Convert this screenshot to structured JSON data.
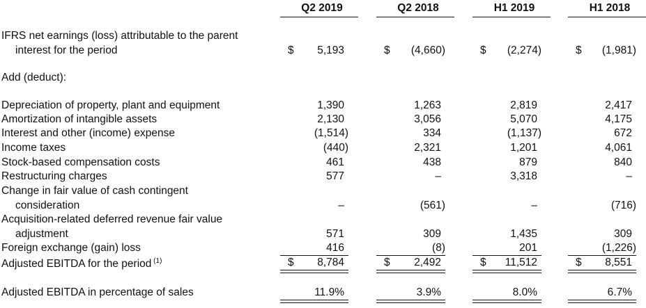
{
  "table": {
    "columns": [
      "Q2 2019",
      "Q2 2018",
      "H1 2019",
      "H1 2018"
    ],
    "rows": [
      {
        "label": [
          "IFRS net earnings (loss) attributable to the parent",
          "interest for the period"
        ],
        "currency": "$",
        "values": [
          "5,193",
          "(4,660)",
          "(2,274)",
          "(1,981)"
        ]
      },
      {
        "label": [
          "Add (deduct):"
        ]
      },
      {
        "label": [
          "Depreciation of property, plant and equipment"
        ],
        "values": [
          "1,390",
          "1,263",
          "2,819",
          "2,417"
        ]
      },
      {
        "label": [
          "Amortization of intangible assets"
        ],
        "values": [
          "2,130",
          "3,056",
          "5,070",
          "4,175"
        ]
      },
      {
        "label": [
          "Interest and other (income) expense"
        ],
        "values": [
          "(1,514)",
          "334",
          "(1,137)",
          "672"
        ]
      },
      {
        "label": [
          "Income taxes"
        ],
        "values": [
          "(440)",
          "2,321",
          "1,201",
          "4,061"
        ]
      },
      {
        "label": [
          "Stock-based compensation costs"
        ],
        "values": [
          "461",
          "438",
          "879",
          "840"
        ]
      },
      {
        "label": [
          "Restructuring charges"
        ],
        "values": [
          "577",
          "–",
          "3,318",
          "–"
        ]
      },
      {
        "label": [
          "Change in fair value of cash contingent",
          "consideration"
        ],
        "values": [
          "–",
          "(561)",
          "–",
          "(716)"
        ]
      },
      {
        "label": [
          "Acquisition-related deferred revenue fair value",
          "adjustment"
        ],
        "values": [
          "571",
          "309",
          "1,435",
          "309"
        ]
      },
      {
        "label": [
          "Foreign exchange (gain) loss"
        ],
        "values": [
          "416",
          "(8)",
          "201",
          "(1,226)"
        ],
        "rule": "single"
      },
      {
        "label": [
          "Adjusted EBITDA for the period"
        ],
        "footnote": "(1)",
        "currency": "$",
        "values": [
          "8,784",
          "2,492",
          "11,512",
          "8,551"
        ],
        "rule": "double"
      },
      {
        "label": [
          "Adjusted EBITDA in percentage of sales"
        ],
        "values": [
          "11.9%",
          "3.9%",
          "8.0%",
          "6.7%"
        ],
        "rule": "double"
      }
    ]
  }
}
